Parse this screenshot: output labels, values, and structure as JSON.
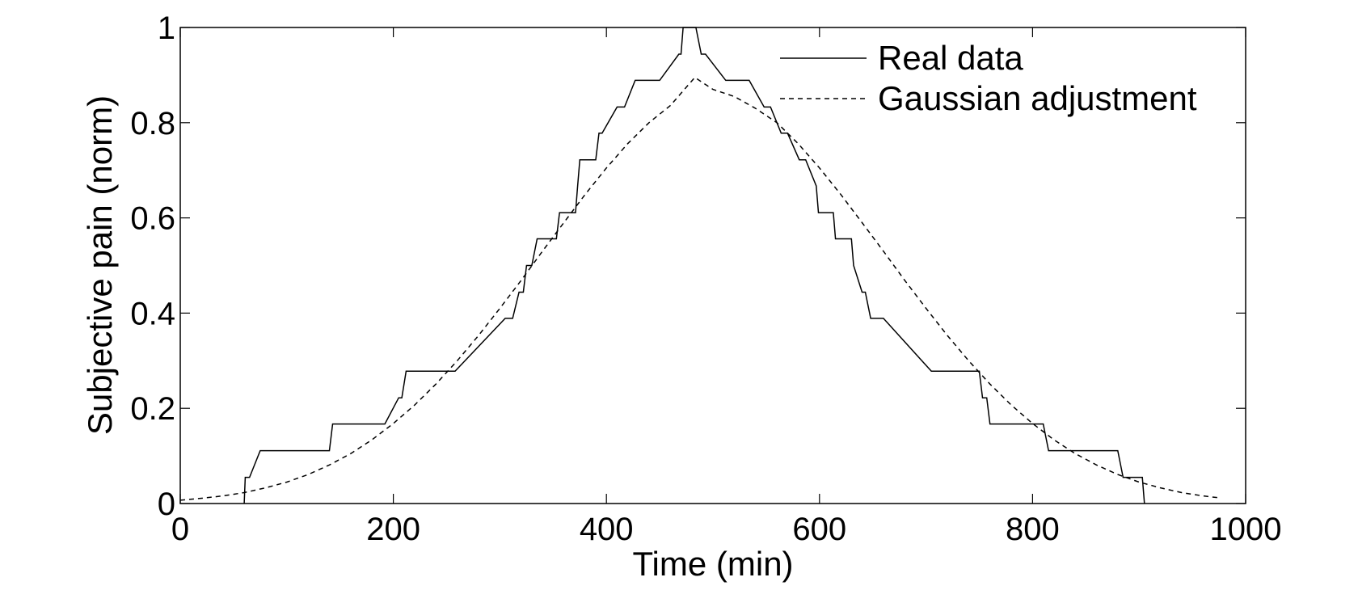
{
  "chart_data": {
    "type": "line",
    "title": "",
    "xlabel": "Time (min)",
    "ylabel": "Subjective pain (norm)",
    "xlim": [
      0,
      1000
    ],
    "ylim": [
      0,
      1
    ],
    "xticks": [
      0,
      200,
      400,
      600,
      800,
      1000
    ],
    "yticks": [
      0,
      0.2,
      0.4,
      0.6,
      0.8,
      1
    ],
    "xtick_labels": [
      "0",
      "200",
      "400",
      "600",
      "800",
      "1000"
    ],
    "ytick_labels": [
      "0",
      "0.2",
      "0.4",
      "0.6",
      "0.8",
      "1"
    ],
    "grid": false,
    "legend_position": "top-right",
    "series": [
      {
        "name": "Real data",
        "style": "solid",
        "color": "#000000",
        "x": [
          60,
          61,
          63,
          65,
          75,
          140,
          143,
          192,
          205,
          208,
          212,
          215,
          258,
          305,
          312,
          318,
          322,
          325,
          330,
          335,
          337,
          339,
          341,
          353,
          356,
          358,
          360,
          371,
          373,
          375,
          378,
          390,
          393,
          395,
          396,
          410,
          413,
          415,
          417,
          427,
          430,
          431,
          433,
          450,
          468,
          470,
          472,
          477,
          479,
          484,
          489,
          491,
          493,
          512,
          530,
          532,
          534,
          548,
          550,
          552,
          554,
          564,
          566,
          568,
          570,
          581,
          583,
          585,
          587,
          597,
          599,
          601,
          603,
          613,
          615,
          617,
          618,
          620,
          624,
          626,
          628,
          630,
          632,
          640,
          643,
          648,
          652,
          656,
          660,
          705,
          745,
          750,
          753,
          757,
          760,
          785,
          810,
          815,
          820,
          860,
          880,
          885,
          898,
          903,
          905
        ],
        "y": [
          0,
          0.055,
          0.055,
          0.055,
          0.111,
          0.111,
          0.167,
          0.167,
          0.222,
          0.222,
          0.278,
          0.278,
          0.278,
          0.389,
          0.389,
          0.444,
          0.444,
          0.5,
          0.5,
          0.556,
          0.556,
          0.556,
          0.556,
          0.556,
          0.611,
          0.611,
          0.611,
          0.611,
          0.667,
          0.722,
          0.722,
          0.722,
          0.778,
          0.778,
          0.778,
          0.833,
          0.833,
          0.833,
          0.833,
          0.889,
          0.889,
          0.889,
          0.889,
          0.889,
          0.944,
          0.944,
          1.0,
          1.0,
          1.0,
          1.0,
          0.944,
          0.944,
          0.944,
          0.889,
          0.889,
          0.889,
          0.889,
          0.833,
          0.833,
          0.833,
          0.833,
          0.778,
          0.778,
          0.778,
          0.778,
          0.722,
          0.722,
          0.722,
          0.722,
          0.667,
          0.611,
          0.611,
          0.611,
          0.611,
          0.556,
          0.556,
          0.556,
          0.556,
          0.556,
          0.556,
          0.556,
          0.556,
          0.5,
          0.444,
          0.444,
          0.389,
          0.389,
          0.389,
          0.389,
          0.278,
          0.278,
          0.278,
          0.222,
          0.222,
          0.167,
          0.167,
          0.167,
          0.111,
          0.111,
          0.111,
          0.111,
          0.055,
          0.055,
          0.055,
          0
        ]
      },
      {
        "name": "Gaussian adjustment",
        "style": "dashed",
        "color": "#000000",
        "x": [
          0,
          20,
          40,
          60,
          80,
          100,
          120,
          140,
          160,
          180,
          200,
          220,
          240,
          260,
          280,
          300,
          320,
          340,
          360,
          380,
          400,
          420,
          440,
          460,
          483,
          500,
          520,
          540,
          560,
          580,
          600,
          620,
          640,
          660,
          680,
          700,
          720,
          740,
          760,
          780,
          800,
          820,
          840,
          860,
          880,
          900,
          920,
          940,
          960,
          975
        ],
        "y": [
          0.007,
          0.011,
          0.016,
          0.023,
          0.033,
          0.045,
          0.061,
          0.081,
          0.105,
          0.134,
          0.168,
          0.207,
          0.251,
          0.3,
          0.353,
          0.41,
          0.469,
          0.53,
          0.59,
          0.649,
          0.705,
          0.756,
          0.8,
          0.836,
          0.895,
          0.87,
          0.855,
          0.83,
          0.8,
          0.756,
          0.705,
          0.649,
          0.59,
          0.53,
          0.469,
          0.41,
          0.353,
          0.3,
          0.251,
          0.207,
          0.168,
          0.134,
          0.105,
          0.081,
          0.061,
          0.045,
          0.033,
          0.023,
          0.016,
          0.012
        ]
      }
    ]
  }
}
